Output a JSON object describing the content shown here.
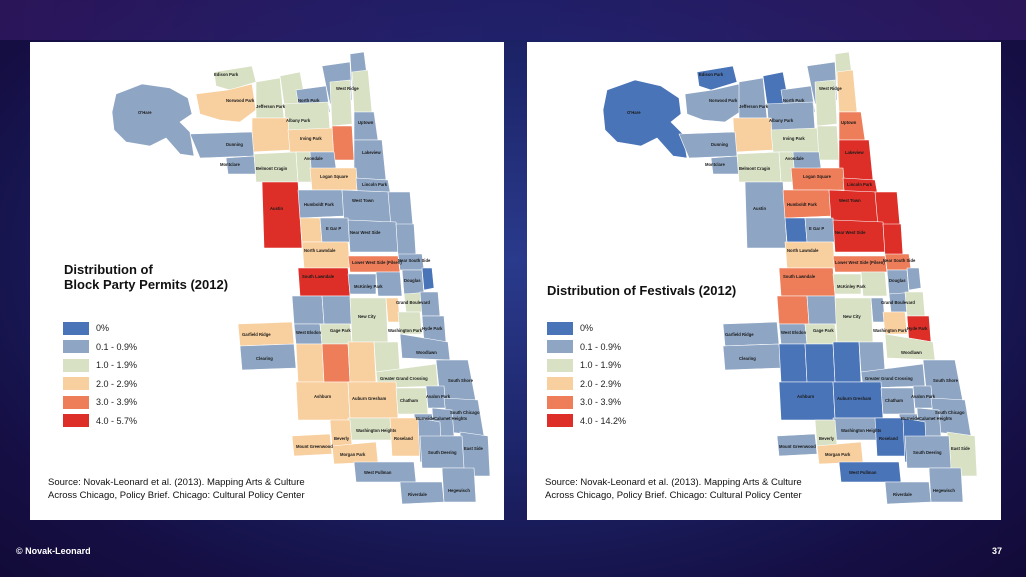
{
  "legend_classes": [
    {
      "label": "0%",
      "color": "#4a74b8"
    },
    {
      "label": "0.1 - 0.9%",
      "color": "#8ea6c4"
    },
    {
      "label": "1.0 - 1.9%",
      "color": "#d8e1c4"
    },
    {
      "label": "2.0 - 2.9%",
      "color": "#f8cf9e"
    },
    {
      "label": "3.0 - 3.9%",
      "color": "#ee7e5a"
    },
    {
      "label": "4.0 - 5.7%",
      "color": "#dd2f28"
    }
  ],
  "maps": [
    {
      "title_line1": "Distribution of",
      "title_line2": "Block Party Permits (2012)",
      "legend": [
        "0%",
        "0.1 - 0.9%",
        "1.0 - 1.9%",
        "2.0 - 2.9%",
        "3.0 - 3.9%",
        "4.0 - 5.7%"
      ],
      "source_line1": "Source: Novak-Leonard et al. (2013). Mapping Arts & Culture",
      "source_line2": "Across Chicago, Policy Brief. Chicago: Cultural Policy Center"
    },
    {
      "title_line1": "Distribution of Festivals (2012)",
      "legend": [
        "0%",
        "0.1 - 0.9%",
        "1.0 - 1.9%",
        "2.0 - 2.9%",
        "3.0 - 3.9%",
        "4.0 - 14.2%"
      ],
      "source_line1": "Source: Novak-Leonard et al. (2013). Mapping Arts & Culture",
      "source_line2": "Across Chicago, Policy Brief. Chicago: Cultural Policy Center"
    }
  ],
  "community_area_labels": [
    "Edison Park",
    "Rogers Park",
    "West Ridge",
    "O'Hare",
    "Norwood Park",
    "Jefferson Park",
    "North Park",
    "Lincoln Square",
    "Edgewater",
    "Forest Glen",
    "Albany Park",
    "Uptown",
    "Portage Park",
    "Irving Park",
    "North Center",
    "Lake View",
    "Dunning",
    "Avondale",
    "Montclare",
    "Belmont Cragin",
    "Logan Square",
    "Lincoln Park",
    "Austin",
    "Hermosa",
    "West Town",
    "Near North Side",
    "Humboldt Park",
    "E Gar P",
    "Near West Side",
    "Loop",
    "W Gar P",
    "North Lawndale",
    "Near South Side",
    "South Lawndale",
    "Lower West Side (Pilsen)",
    "McKinley Park",
    "Bridgeport",
    "Douglas",
    "Oakland",
    "Grand Boulevard",
    "Garfield Ridge",
    "West Elsdon",
    "Gage Park",
    "New City",
    "Fuller Park",
    "Washington Park",
    "Hyde Park",
    "Kenwood",
    "Clearing",
    "West Lawn",
    "Chicago Lawn",
    "West Englewood",
    "Englewood",
    "Woodlawn",
    "Greater Grand Crossing",
    "South Shore",
    "Ashburn",
    "Auburn Gresham",
    "Chatham",
    "Avalon Park",
    "South Chicago",
    "Burnside",
    "Calumet Heights",
    "Washington Heights",
    "Roseland",
    "Beverly",
    "Mount Greenwood",
    "Morgan Park",
    "West Pullman",
    "Pullman",
    "South Deering",
    "East Side",
    "Riverdale",
    "Hegewisch"
  ],
  "footer": {
    "copyright": "© Novak-Leonard",
    "page_number": "37"
  }
}
